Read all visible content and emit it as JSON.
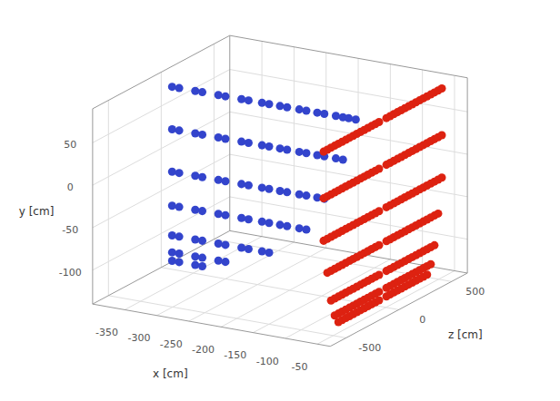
{
  "chart_data": {
    "type": "scatter",
    "xlabel": "x [cm]",
    "ylabel": "y [cm]",
    "zlabel": "z [cm]",
    "xlim": [
      -400,
      -30
    ],
    "ylim": [
      -140,
      90
    ],
    "zlim": [
      -650,
      650
    ],
    "xticks": [
      -350,
      -300,
      -250,
      -200,
      -150,
      -100,
      -50
    ],
    "yticks": [
      -100,
      -50,
      0,
      50
    ],
    "zticks": [
      -500,
      0,
      500
    ],
    "grid": true,
    "series": [
      {
        "color": "#3344cc",
        "x": [
          -383,
          -372,
          -347,
          -336,
          -311,
          -300,
          -275,
          -264,
          -243,
          -232,
          -215,
          -204,
          -185,
          -174,
          -157,
          -146,
          -128,
          -117,
          -108,
          -97,
          -383,
          -372,
          -347,
          -336,
          -311,
          -300,
          -275,
          -264,
          -243,
          -232,
          -215,
          -204,
          -185,
          -174,
          -157,
          -146,
          -128,
          -117,
          -383,
          -372,
          -347,
          -336,
          -311,
          -300,
          -275,
          -264,
          -243,
          -232,
          -215,
          -204,
          -185,
          -174,
          -157,
          -146,
          -383,
          -372,
          -347,
          -336,
          -311,
          -300,
          -275,
          -264,
          -243,
          -232,
          -215,
          -204,
          -185,
          -174,
          -383,
          -372,
          -347,
          -336,
          -311,
          -300,
          -275,
          -264,
          -243,
          -232,
          -383,
          -372,
          -347,
          -336,
          -311,
          -300,
          -383,
          -372,
          -347,
          -336
        ],
        "y": [
          75,
          75,
          75,
          75,
          75,
          75,
          75,
          75,
          75,
          75,
          75,
          75,
          75,
          75,
          75,
          75,
          75,
          75,
          75,
          75,
          25,
          25,
          25,
          25,
          25,
          25,
          25,
          25,
          25,
          25,
          25,
          25,
          25,
          25,
          25,
          25,
          25,
          25,
          -25,
          -25,
          -25,
          -25,
          -25,
          -25,
          -25,
          -25,
          -25,
          -25,
          -25,
          -25,
          -25,
          -25,
          -25,
          -25,
          -65,
          -65,
          -65,
          -65,
          -65,
          -65,
          -65,
          -65,
          -65,
          -65,
          -65,
          -65,
          -65,
          -65,
          -100,
          -100,
          -100,
          -100,
          -100,
          -100,
          -100,
          -100,
          -100,
          -100,
          -120,
          -120,
          -120,
          -120,
          -120,
          -120,
          -130,
          -130,
          -130,
          -130
        ],
        "z": [
          0,
          0,
          0,
          0,
          0,
          0,
          0,
          0,
          0,
          0,
          0,
          0,
          0,
          0,
          0,
          0,
          0,
          0,
          0,
          0,
          0,
          0,
          0,
          0,
          0,
          0,
          0,
          0,
          0,
          0,
          0,
          0,
          0,
          0,
          0,
          0,
          0,
          0,
          0,
          0,
          0,
          0,
          0,
          0,
          0,
          0,
          0,
          0,
          0,
          0,
          0,
          0,
          0,
          0,
          0,
          0,
          0,
          0,
          0,
          0,
          0,
          0,
          0,
          0,
          0,
          0,
          0,
          0,
          0,
          0,
          0,
          0,
          0,
          0,
          0,
          0,
          0,
          0,
          0,
          0,
          0,
          0,
          0,
          0,
          0,
          0,
          0,
          0
        ]
      },
      {
        "color": "#dd2211",
        "x": [
          -55,
          -55,
          -55,
          -55,
          -55,
          -55,
          -55,
          -55,
          -55,
          -55,
          -55,
          -55,
          -55,
          -55,
          -55,
          -55,
          -55,
          -55,
          -55,
          -55,
          -55,
          -55,
          -55,
          -55,
          -55,
          -55,
          -55,
          -55,
          -55,
          -55,
          -55,
          -55,
          -55,
          -55,
          -55,
          -55,
          -55,
          -55,
          -55,
          -55,
          -55,
          -55,
          -55,
          -55,
          -55,
          -55,
          -55,
          -55,
          -55,
          -55,
          -55,
          -55,
          -55,
          -55,
          -55,
          -55,
          -55,
          -55,
          -55,
          -55,
          -55,
          -55,
          -55,
          -55,
          -55,
          -55,
          -55,
          -55,
          -55,
          -55,
          -55,
          -55,
          -55,
          -55,
          -55,
          -55,
          -55,
          -55,
          -55,
          -55,
          -55,
          -55,
          -55,
          -55,
          -55,
          -55,
          -55,
          -55,
          -55,
          -55,
          -55,
          -55,
          -55,
          -55,
          -55,
          -55,
          -55,
          -55,
          -55,
          -55,
          -55,
          -55,
          -55,
          -55,
          -55,
          -55,
          -55,
          -55,
          -55,
          -55,
          -55,
          -55,
          -55,
          -55,
          -55,
          -55,
          -55,
          -55,
          -55,
          -55,
          -55,
          -55,
          -55,
          -55,
          -55,
          -55,
          -55,
          -55,
          -55,
          -55,
          -55,
          -55,
          -55,
          -55,
          -55,
          -55,
          -55,
          -55,
          -55,
          -55,
          -55,
          -55,
          -55,
          -55,
          -55,
          -55,
          -55,
          -55,
          -55,
          -55,
          -55,
          -55,
          -55,
          -55,
          -55,
          -55,
          -55,
          -55,
          -55,
          -55,
          -55,
          -55,
          -55,
          -55,
          -55,
          -55,
          -55,
          -55,
          -55,
          -55,
          -55,
          -55,
          -55,
          -55,
          -55,
          -55,
          -55,
          -55,
          -55,
          -55,
          -55,
          -55,
          -55,
          -55,
          -55,
          -55,
          -55,
          -55,
          -55,
          -55,
          -55,
          -55,
          -55,
          -55,
          -55,
          -55,
          -55,
          -55,
          -55,
          -55,
          -55,
          -55,
          -55,
          -55
        ],
        "y": [
          80,
          80,
          80,
          80,
          80,
          80,
          80,
          80,
          80,
          80,
          80,
          80,
          80,
          80,
          80,
          80,
          80,
          80,
          80,
          80,
          80,
          80,
          80,
          80,
          80,
          80,
          80,
          80,
          80,
          80,
          80,
          80,
          25,
          25,
          25,
          25,
          25,
          25,
          25,
          25,
          25,
          25,
          25,
          25,
          25,
          25,
          25,
          25,
          25,
          25,
          25,
          25,
          25,
          25,
          25,
          25,
          25,
          25,
          25,
          25,
          25,
          25,
          25,
          25,
          -25,
          -25,
          -25,
          -25,
          -25,
          -25,
          -25,
          -25,
          -25,
          -25,
          -25,
          -25,
          -25,
          -25,
          -25,
          -25,
          -25,
          -25,
          -25,
          -25,
          -25,
          -25,
          -25,
          -25,
          -25,
          -25,
          -25,
          -25,
          -25,
          -25,
          -25,
          -25,
          -65,
          -65,
          -65,
          -65,
          -65,
          -65,
          -65,
          -65,
          -65,
          -65,
          -65,
          -65,
          -65,
          -65,
          -65,
          -65,
          -65,
          -65,
          -65,
          -65,
          -65,
          -65,
          -65,
          -65,
          -65,
          -65,
          -65,
          -65,
          -65,
          -65,
          -100,
          -100,
          -100,
          -100,
          -100,
          -100,
          -100,
          -100,
          -100,
          -100,
          -100,
          -100,
          -100,
          -100,
          -100,
          -100,
          -100,
          -100,
          -100,
          -100,
          -100,
          -100,
          -100,
          -100,
          -100,
          -100,
          -100,
          -100,
          -120,
          -120,
          -120,
          -120,
          -120,
          -120,
          -120,
          -120,
          -120,
          -120,
          -120,
          -120,
          -120,
          -120,
          -120,
          -120,
          -120,
          -120,
          -120,
          -120,
          -120,
          -120,
          -120,
          -120,
          -120,
          -120,
          -130,
          -130,
          -130,
          -130,
          -130,
          -130,
          -130,
          -130,
          -130,
          -130,
          -130,
          -130,
          -130,
          -130,
          -130,
          -130,
          -130,
          -130,
          -130,
          -130,
          -130,
          -130,
          -130,
          -130
        ],
        "z": [
          -560,
          -525,
          -490,
          -455,
          -420,
          -385,
          -350,
          -315,
          -280,
          -245,
          -210,
          -175,
          -140,
          -105,
          -70,
          -35,
          35,
          70,
          105,
          140,
          175,
          210,
          245,
          280,
          315,
          350,
          385,
          420,
          455,
          490,
          525,
          560,
          -560,
          -525,
          -490,
          -455,
          -420,
          -385,
          -350,
          -315,
          -280,
          -245,
          -210,
          -175,
          -140,
          -105,
          -70,
          -35,
          35,
          70,
          105,
          140,
          175,
          210,
          245,
          280,
          315,
          350,
          385,
          420,
          455,
          490,
          525,
          560,
          -560,
          -525,
          -490,
          -455,
          -420,
          -385,
          -350,
          -315,
          -280,
          -245,
          -210,
          -175,
          -140,
          -105,
          -70,
          -35,
          35,
          70,
          105,
          140,
          175,
          210,
          245,
          280,
          315,
          350,
          385,
          420,
          455,
          490,
          525,
          560,
          -525,
          -490,
          -455,
          -420,
          -385,
          -350,
          -315,
          -280,
          -245,
          -210,
          -175,
          -140,
          -105,
          -70,
          -35,
          35,
          70,
          105,
          140,
          175,
          210,
          245,
          280,
          315,
          350,
          385,
          420,
          455,
          490,
          525,
          -490,
          -455,
          -420,
          -385,
          -350,
          -315,
          -280,
          -245,
          -210,
          -175,
          -140,
          -105,
          -70,
          -35,
          35,
          70,
          105,
          140,
          175,
          210,
          245,
          280,
          315,
          350,
          385,
          420,
          455,
          490,
          -455,
          -420,
          -385,
          -350,
          -315,
          -280,
          -245,
          -210,
          -175,
          -140,
          -105,
          -70,
          -35,
          35,
          70,
          105,
          140,
          175,
          210,
          245,
          280,
          315,
          350,
          385,
          420,
          455,
          -420,
          -385,
          -350,
          -315,
          -280,
          -245,
          -210,
          -175,
          -140,
          -105,
          -70,
          -35,
          35,
          70,
          105,
          140,
          175,
          210,
          245,
          280,
          315,
          350,
          385,
          420
        ]
      }
    ]
  }
}
